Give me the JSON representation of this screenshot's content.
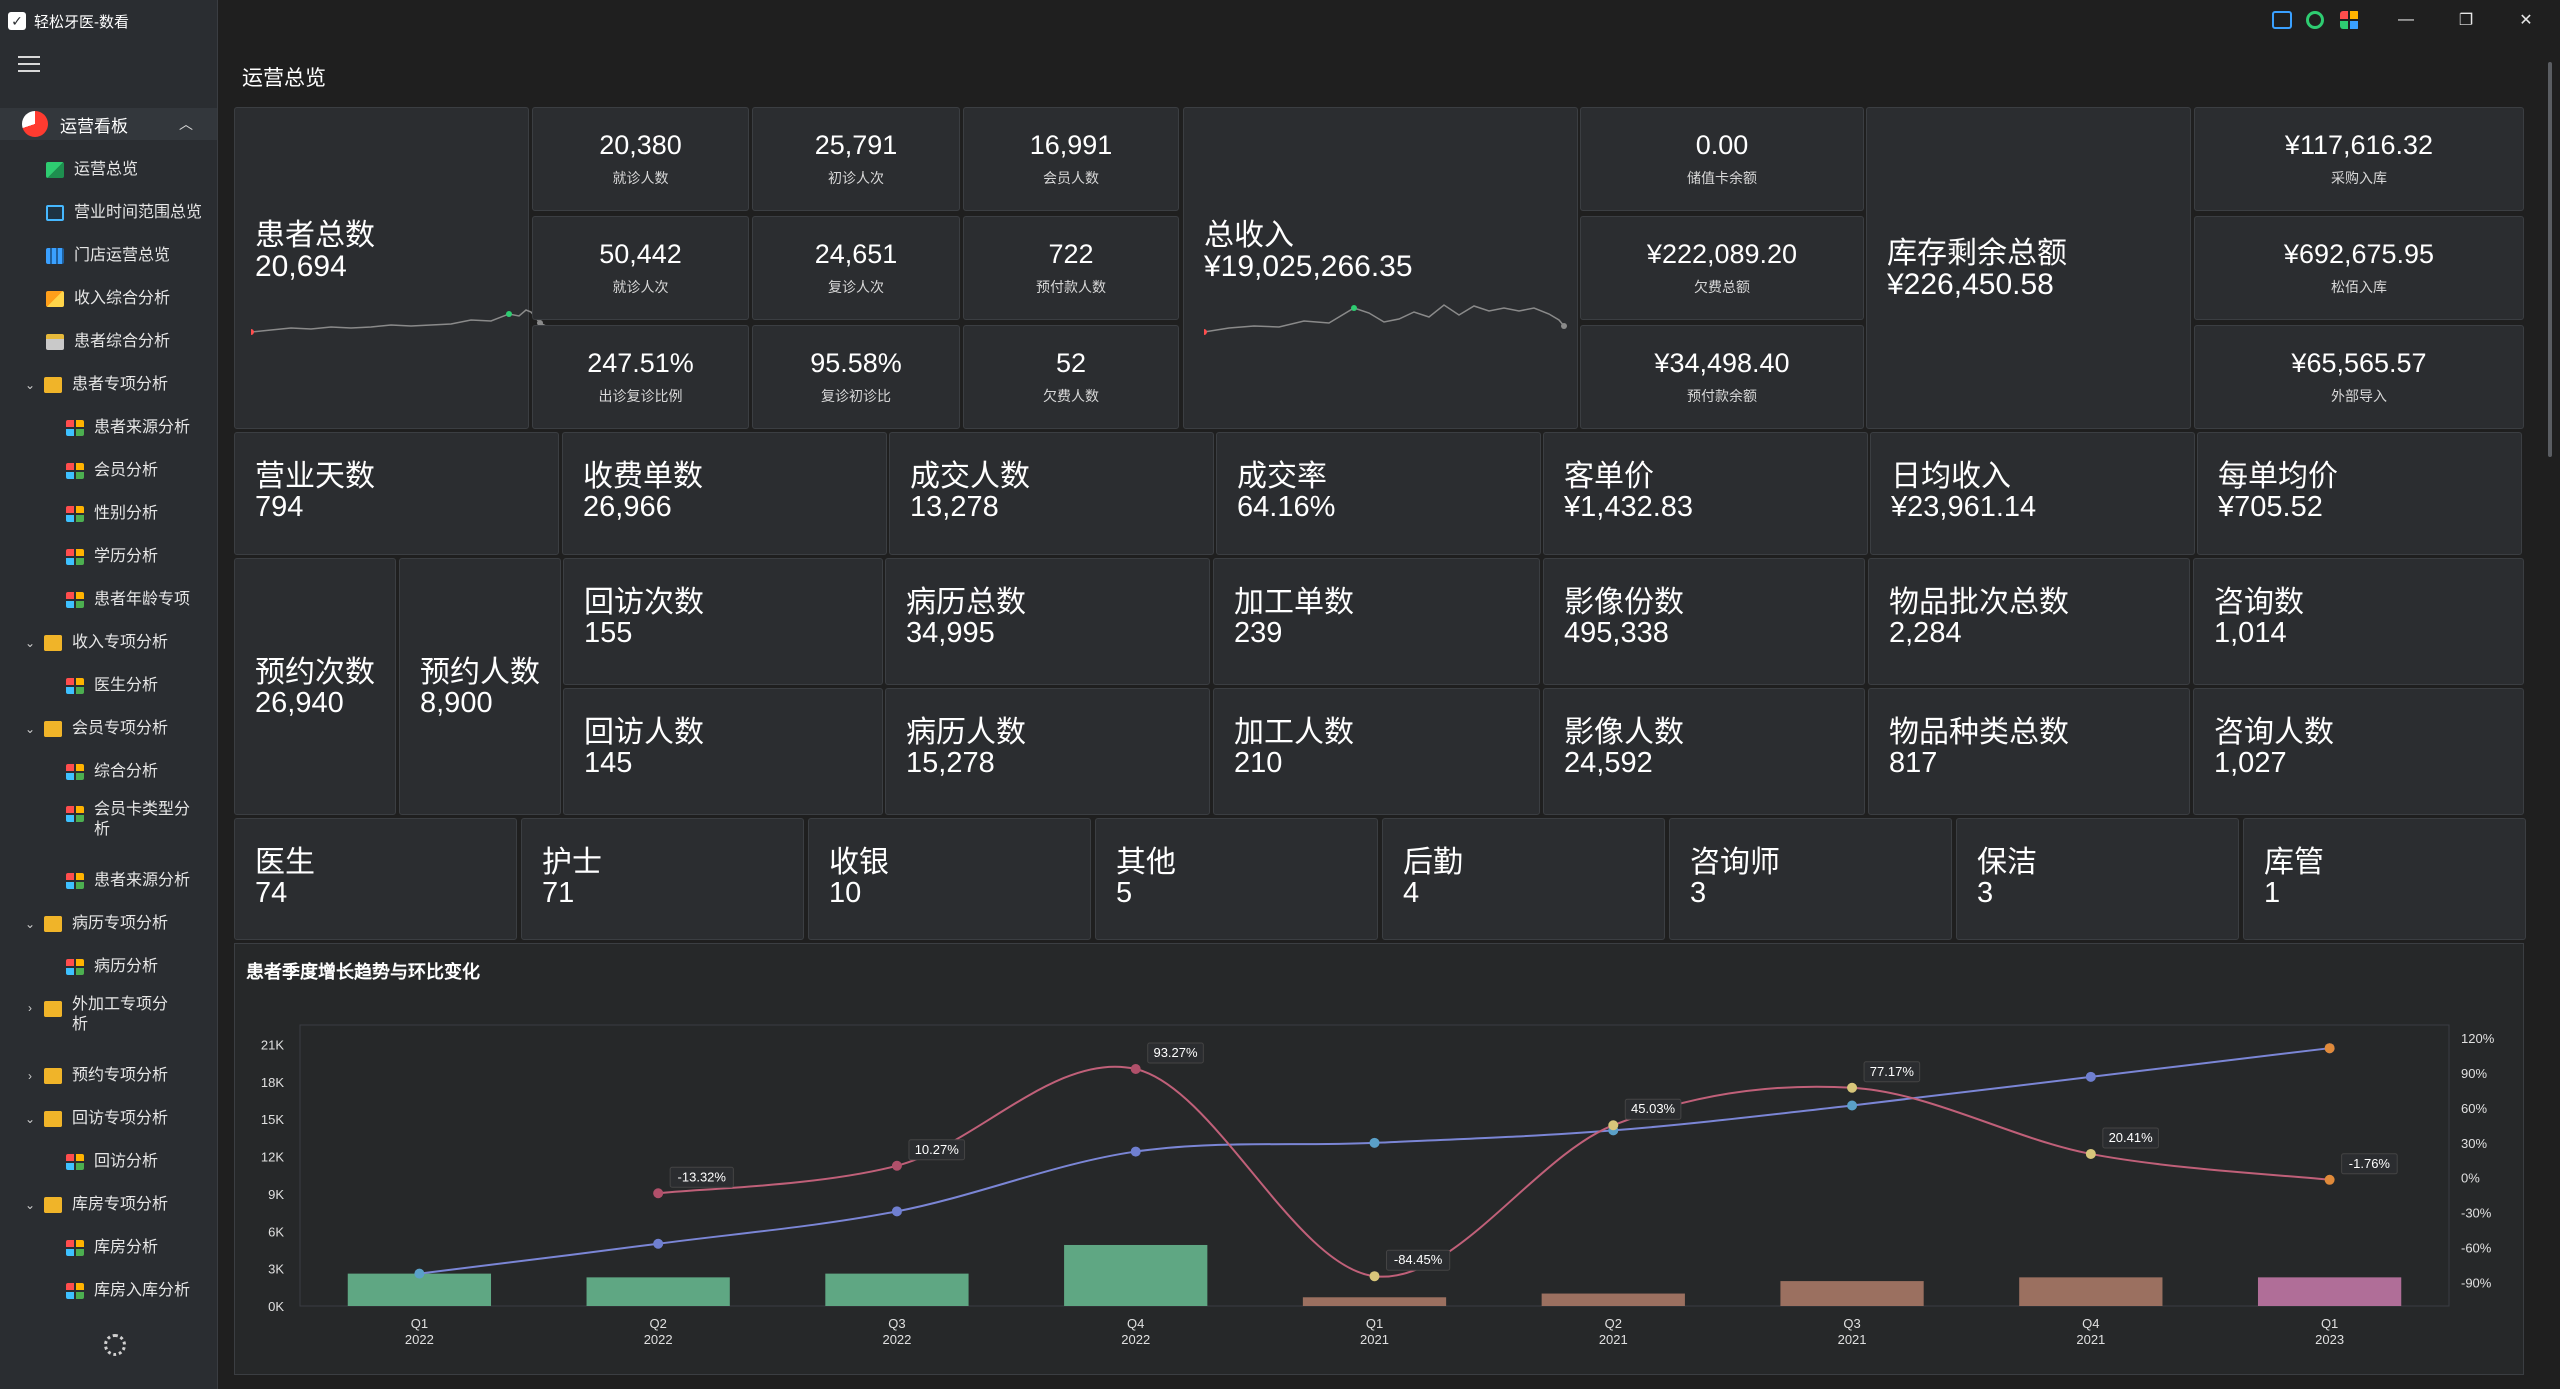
{
  "app": {
    "title": "轻松牙医-数看"
  },
  "sidebar": {
    "group": {
      "label": "运营看板"
    },
    "items": [
      {
        "label": "运营总览",
        "icon": "line-chart-icon"
      },
      {
        "label": "营业时间范围总览",
        "icon": "screen-icon"
      },
      {
        "label": "门店运营总览",
        "icon": "table-icon"
      },
      {
        "label": "收入综合分析",
        "icon": "envelope-icon"
      },
      {
        "label": "患者综合分析",
        "icon": "document-icon"
      },
      {
        "label": "患者专项分析",
        "icon": "folder-icon"
      },
      {
        "label": "患者来源分析",
        "icon": "blocks-icon"
      },
      {
        "label": "会员分析",
        "icon": "blocks-icon"
      },
      {
        "label": "性别分析",
        "icon": "blocks-icon"
      },
      {
        "label": "学历分析",
        "icon": "blocks-icon"
      },
      {
        "label": "患者年龄专项",
        "icon": "blocks-icon"
      },
      {
        "label": "收入专项分析",
        "icon": "folder-icon"
      },
      {
        "label": "医生分析",
        "icon": "blocks-icon"
      },
      {
        "label": "会员专项分析",
        "icon": "folder-icon"
      },
      {
        "label": "综合分析",
        "icon": "blocks-icon"
      },
      {
        "label": "会员卡类型分",
        "label2": "析",
        "icon": "blocks-icon"
      },
      {
        "label": "患者来源分析",
        "icon": "blocks-icon"
      },
      {
        "label": "病历专项分析",
        "icon": "folder-icon"
      },
      {
        "label": "病历分析",
        "icon": "blocks-icon"
      },
      {
        "label": "外加工专项分",
        "label2": "析",
        "icon": "folder-icon"
      },
      {
        "label": "预约专项分析",
        "icon": "folder-icon"
      },
      {
        "label": "回访专项分析",
        "icon": "folder-icon"
      },
      {
        "label": "回访分析",
        "icon": "blocks-icon"
      },
      {
        "label": "库房专项分析",
        "icon": "folder-icon"
      },
      {
        "label": "库房分析",
        "icon": "blocks-icon"
      },
      {
        "label": "库房入库分析",
        "icon": "blocks-icon"
      }
    ]
  },
  "page": {
    "title": "运营总览"
  },
  "patients": {
    "label": "患者总数",
    "value": "20,694",
    "cells": [
      {
        "v": "20,380",
        "l": "就诊人数"
      },
      {
        "v": "25,791",
        "l": "初诊人次"
      },
      {
        "v": "16,991",
        "l": "会员人数"
      },
      {
        "v": "50,442",
        "l": "就诊人次"
      },
      {
        "v": "24,651",
        "l": "复诊人次"
      },
      {
        "v": "722",
        "l": "预付款人数"
      },
      {
        "v": "247.51%",
        "l": "出诊复诊比例"
      },
      {
        "v": "95.58%",
        "l": "复诊初诊比"
      },
      {
        "v": "52",
        "l": "欠费人数"
      }
    ]
  },
  "revenue": {
    "label": "总收入",
    "value": "¥19,025,266.35",
    "cells": [
      {
        "v": "0.00",
        "l": "储值卡余额"
      },
      {
        "v": "¥222,089.20",
        "l": "欠费总额"
      },
      {
        "v": "¥34,498.40",
        "l": "预付款余额"
      }
    ]
  },
  "inventory": {
    "label": "库存剩余总额",
    "value": "¥226,450.58",
    "cells": [
      {
        "v": "¥117,616.32",
        "l": "采购入库"
      },
      {
        "v": "¥692,675.95",
        "l": "松佰入库"
      },
      {
        "v": "¥65,565.57",
        "l": "外部导入"
      }
    ]
  },
  "row2": [
    {
      "label": "营业天数",
      "value": "794"
    },
    {
      "label": "收费单数",
      "value": "26,966"
    },
    {
      "label": "成交人数",
      "value": "13,278"
    },
    {
      "label": "成交率",
      "value": "64.16%"
    },
    {
      "label": "客单价",
      "value": "¥1,432.83"
    },
    {
      "label": "日均收入",
      "value": "¥23,961.14"
    },
    {
      "label": "每单均价",
      "value": "¥705.52"
    }
  ],
  "appointments": [
    {
      "label": "预约次数",
      "value": "26,940"
    },
    {
      "label": "预约人数",
      "value": "8,900"
    }
  ],
  "row3_top": [
    {
      "label": "回访次数",
      "value": "155"
    },
    {
      "label": "病历总数",
      "value": "34,995"
    },
    {
      "label": "加工单数",
      "value": "239"
    },
    {
      "label": "影像份数",
      "value": "495,338"
    },
    {
      "label": "物品批次总数",
      "value": "2,284"
    },
    {
      "label": "咨询数",
      "value": "1,014"
    }
  ],
  "row3_bottom": [
    {
      "label": "回访人数",
      "value": "145"
    },
    {
      "label": "病历人数",
      "value": "15,278"
    },
    {
      "label": "加工人数",
      "value": "210"
    },
    {
      "label": "影像人数",
      "value": "24,592"
    },
    {
      "label": "物品种类总数",
      "value": "817"
    },
    {
      "label": "咨询人数",
      "value": "1,027"
    }
  ],
  "staff": [
    {
      "label": "医生",
      "value": "74"
    },
    {
      "label": "护士",
      "value": "71"
    },
    {
      "label": "收银",
      "value": "10"
    },
    {
      "label": "其他",
      "value": "5"
    },
    {
      "label": "后勤",
      "value": "4"
    },
    {
      "label": "咨询师",
      "value": "3"
    },
    {
      "label": "保洁",
      "value": "3"
    },
    {
      "label": "库管",
      "value": "1"
    }
  ],
  "chart_data": {
    "type": "bar",
    "title": "患者季度增长趋势与环比变化",
    "categories": [
      "Q1\n2022",
      "Q2\n2022",
      "Q3\n2022",
      "Q4\n2022",
      "Q1\n2021",
      "Q2\n2021",
      "Q3\n2021",
      "Q4\n2021",
      "Q1\n2023"
    ],
    "y_left_ticks": [
      "0K",
      "3K",
      "6K",
      "9K",
      "12K",
      "15K",
      "18K",
      "21K"
    ],
    "y_right_ticks": [
      "-90%",
      "-60%",
      "-30%",
      "0%",
      "30%",
      "60%",
      "90%",
      "120%"
    ],
    "ylim_left": [
      0,
      22000
    ],
    "ylim_right": [
      -110,
      125
    ],
    "bars": [
      2600,
      2300,
      2600,
      4900,
      700,
      1000,
      2000,
      2300,
      2300
    ],
    "bar_colors": [
      "#5fa783",
      "#5fa783",
      "#5fa783",
      "#5fa783",
      "#9b7060",
      "#9b7060",
      "#9b7060",
      "#9b7060",
      "#b06e98"
    ],
    "cumulative": [
      2600,
      5000,
      7600,
      12400,
      13100,
      14100,
      16100,
      18400,
      20700
    ],
    "qoq": [
      null,
      -13.32,
      10.27,
      93.27,
      -84.45,
      45.03,
      77.17,
      20.41,
      -1.76
    ],
    "qoq_labels": [
      "",
      "-13.32%",
      "10.27%",
      "93.27%",
      "-84.45%",
      "45.03%",
      "77.17%",
      "20.41%",
      "-1.76%"
    ],
    "line_colors": {
      "cumulative": "#7b86d6",
      "qoq": "#c06079"
    }
  }
}
